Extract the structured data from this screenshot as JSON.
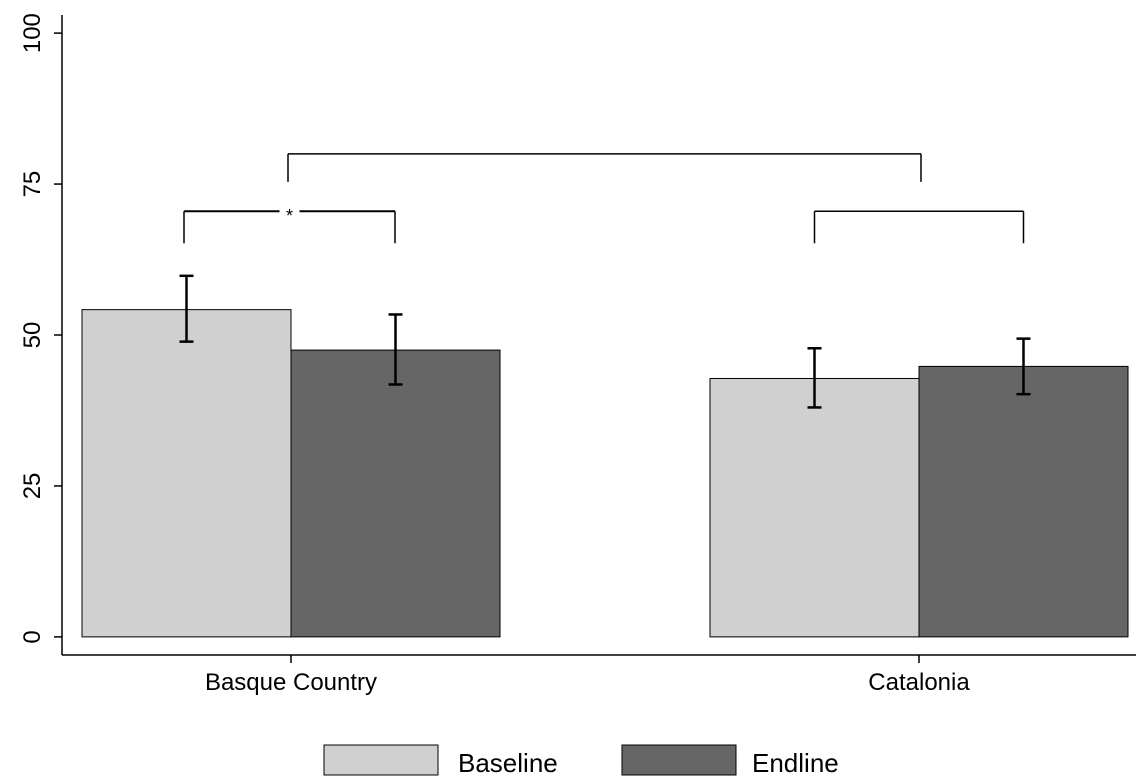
{
  "chart_data": {
    "type": "bar",
    "categories": [
      "Basque Country",
      "Catalonia"
    ],
    "series": [
      {
        "name": "Baseline",
        "color": "#d0d0d0",
        "values": [
          54.2,
          42.8
        ],
        "error_low": [
          48.9,
          38.0
        ],
        "error_high": [
          59.8,
          47.8
        ]
      },
      {
        "name": "Endline",
        "color": "#666666",
        "values": [
          47.5,
          44.8
        ],
        "error_low": [
          41.8,
          40.2
        ],
        "error_high": [
          53.4,
          49.4
        ]
      }
    ],
    "yticks": [
      0,
      25,
      50,
      75,
      100
    ],
    "ylim": [
      -3,
      103
    ],
    "significance_brackets": [
      {
        "category": "Basque Country",
        "between": "Baseline vs Endline",
        "label": "*",
        "level": 70.5
      },
      {
        "category": "Catalonia",
        "between": "Baseline vs Endline",
        "label": "",
        "level": 70.5
      },
      {
        "between": "Basque Country vs Catalonia",
        "label": "",
        "level": 80
      }
    ],
    "legend_position": "bottom",
    "grid": false,
    "title": "",
    "xlabel": "",
    "ylabel": ""
  }
}
